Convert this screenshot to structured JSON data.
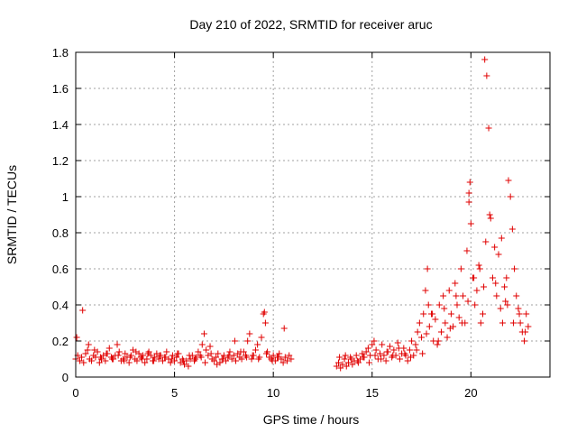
{
  "chart_data": {
    "type": "scatter",
    "title": "Day 210 of 2022, SRMTID for receiver aruc",
    "xlabel": "GPS time / hours",
    "ylabel": "SRMTID / TECUs",
    "xlim": [
      0,
      24
    ],
    "ylim": [
      0,
      1.8
    ],
    "xticks": [
      0,
      5,
      10,
      15,
      20
    ],
    "xtick_labels": [
      "0",
      "5",
      "10",
      "15",
      "20"
    ],
    "yticks": [
      0,
      0.2,
      0.4,
      0.6,
      0.8,
      1.0,
      1.2,
      1.4,
      1.6,
      1.8
    ],
    "ytick_labels": [
      "0",
      "0.2",
      "0.4",
      "0.6",
      "0.8",
      "1",
      "1.2",
      "1.4",
      "1.6",
      "1.8"
    ],
    "grid": true,
    "marker": "+",
    "series": [
      {
        "name": "SRMTID",
        "color": "#e00000",
        "x": [
          0.0,
          0.1,
          0.2,
          0.3,
          0.4,
          0.5,
          0.6,
          0.7,
          0.8,
          0.9,
          1.0,
          1.1,
          1.2,
          1.3,
          1.4,
          1.5,
          1.6,
          1.7,
          1.8,
          1.9,
          2.0,
          2.1,
          2.2,
          2.3,
          2.4,
          2.5,
          2.6,
          2.7,
          2.8,
          2.9,
          3.0,
          3.1,
          3.2,
          3.3,
          3.4,
          3.5,
          3.6,
          3.7,
          3.8,
          3.9,
          4.0,
          4.1,
          4.2,
          4.3,
          4.4,
          4.5,
          4.6,
          4.7,
          4.8,
          4.9,
          5.0,
          5.1,
          5.2,
          5.3,
          5.4,
          5.5,
          5.6,
          5.7,
          5.8,
          5.9,
          6.0,
          6.1,
          6.2,
          6.3,
          6.4,
          6.5,
          6.6,
          6.7,
          6.8,
          6.9,
          7.0,
          7.1,
          7.2,
          7.3,
          7.4,
          7.5,
          7.6,
          7.7,
          7.8,
          7.9,
          8.0,
          8.1,
          8.2,
          8.3,
          8.4,
          8.5,
          8.6,
          8.7,
          8.8,
          8.9,
          9.0,
          9.1,
          9.2,
          9.3,
          9.4,
          9.5,
          9.55,
          9.6,
          9.7,
          9.8,
          9.9,
          10.0,
          10.1,
          10.2,
          10.3,
          10.4,
          10.5,
          10.6,
          10.7,
          10.8,
          10.9,
          13.2,
          13.3,
          13.4,
          13.5,
          13.6,
          13.7,
          13.8,
          13.9,
          14.0,
          14.1,
          14.2,
          14.3,
          14.4,
          14.5,
          14.6,
          14.7,
          14.8,
          14.9,
          15.0,
          15.1,
          15.2,
          15.3,
          15.4,
          15.5,
          15.6,
          15.7,
          15.8,
          15.9,
          16.0,
          16.1,
          16.2,
          16.3,
          16.4,
          16.5,
          16.6,
          16.7,
          16.8,
          16.9,
          17.0,
          17.1,
          17.2,
          17.3,
          17.4,
          17.5,
          17.6,
          17.7,
          17.8,
          17.85,
          17.9,
          18.0,
          18.1,
          18.2,
          18.3,
          18.4,
          18.5,
          18.6,
          18.7,
          18.8,
          18.9,
          19.0,
          19.1,
          19.2,
          19.3,
          19.4,
          19.5,
          19.6,
          19.7,
          19.8,
          19.9,
          19.95,
          20.0,
          20.1,
          20.2,
          20.3,
          20.4,
          20.5,
          20.6,
          20.65,
          20.7,
          20.8,
          20.9,
          21.0,
          21.1,
          21.2,
          21.3,
          21.4,
          21.5,
          21.6,
          21.7,
          21.75,
          21.8,
          21.9,
          22.0,
          22.1,
          22.2,
          22.3,
          22.4,
          22.5,
          22.6,
          22.7,
          22.8,
          22.9,
          0.05,
          0.35,
          0.65,
          0.95,
          1.25,
          1.55,
          1.85,
          2.15,
          2.45,
          2.75,
          3.05,
          3.35,
          3.65,
          3.95,
          4.25,
          4.55,
          4.85,
          5.15,
          5.45,
          5.75,
          6.05,
          6.35,
          6.55,
          6.85,
          7.15,
          7.45,
          7.75,
          8.05,
          8.35,
          8.65,
          8.95,
          9.25,
          9.65,
          9.95,
          10.25,
          10.55,
          13.35,
          13.65,
          13.95,
          14.25,
          14.55,
          14.85,
          15.15,
          15.45,
          15.75,
          16.05,
          16.35,
          16.65,
          16.95,
          17.25,
          17.55,
          17.75,
          18.05,
          18.35,
          18.65,
          18.95,
          19.25,
          19.55,
          19.85,
          19.9,
          20.15,
          20.45,
          20.75,
          20.95,
          21.25,
          21.55,
          21.85,
          22.15,
          22.45,
          22.75
        ],
        "y": [
          0.1,
          0.12,
          0.09,
          0.11,
          0.08,
          0.13,
          0.15,
          0.1,
          0.09,
          0.12,
          0.11,
          0.14,
          0.08,
          0.1,
          0.12,
          0.09,
          0.13,
          0.16,
          0.11,
          0.1,
          0.12,
          0.18,
          0.14,
          0.09,
          0.1,
          0.13,
          0.11,
          0.08,
          0.12,
          0.15,
          0.1,
          0.09,
          0.13,
          0.11,
          0.12,
          0.08,
          0.1,
          0.14,
          0.12,
          0.09,
          0.11,
          0.13,
          0.1,
          0.12,
          0.09,
          0.11,
          0.14,
          0.1,
          0.08,
          0.12,
          0.09,
          0.11,
          0.13,
          0.08,
          0.1,
          0.07,
          0.09,
          0.06,
          0.1,
          0.12,
          0.09,
          0.11,
          0.14,
          0.12,
          0.18,
          0.24,
          0.15,
          0.12,
          0.17,
          0.1,
          0.09,
          0.11,
          0.13,
          0.08,
          0.1,
          0.12,
          0.09,
          0.11,
          0.14,
          0.1,
          0.12,
          0.09,
          0.13,
          0.11,
          0.1,
          0.14,
          0.12,
          0.2,
          0.24,
          0.1,
          0.12,
          0.15,
          0.18,
          0.11,
          0.22,
          0.35,
          0.36,
          0.3,
          0.14,
          0.11,
          0.1,
          0.12,
          0.09,
          0.11,
          0.13,
          0.1,
          0.08,
          0.11,
          0.09,
          0.12,
          0.1,
          0.06,
          0.08,
          0.05,
          0.07,
          0.1,
          0.06,
          0.08,
          0.11,
          0.07,
          0.09,
          0.12,
          0.08,
          0.1,
          0.13,
          0.11,
          0.14,
          0.16,
          0.12,
          0.18,
          0.2,
          0.15,
          0.1,
          0.13,
          0.18,
          0.12,
          0.09,
          0.14,
          0.17,
          0.11,
          0.15,
          0.12,
          0.19,
          0.1,
          0.13,
          0.16,
          0.12,
          0.09,
          0.15,
          0.2,
          0.12,
          0.18,
          0.25,
          0.3,
          0.22,
          0.35,
          0.48,
          0.6,
          0.4,
          0.28,
          0.35,
          0.2,
          0.32,
          0.18,
          0.4,
          0.25,
          0.45,
          0.3,
          0.22,
          0.48,
          0.35,
          0.28,
          0.52,
          0.4,
          0.33,
          0.6,
          0.45,
          0.3,
          0.7,
          1.02,
          1.08,
          0.85,
          0.55,
          0.4,
          0.48,
          0.62,
          0.3,
          0.35,
          0.5,
          1.76,
          1.67,
          1.38,
          0.88,
          0.55,
          0.72,
          0.45,
          0.68,
          0.38,
          0.3,
          0.5,
          0.42,
          0.55,
          1.09,
          1.0,
          0.82,
          0.6,
          0.45,
          0.38,
          0.3,
          0.25,
          0.2,
          0.35,
          0.28,
          0.22,
          0.37,
          0.18,
          0.15,
          0.11,
          0.13,
          0.1,
          0.12,
          0.09,
          0.11,
          0.14,
          0.1,
          0.13,
          0.09,
          0.12,
          0.11,
          0.1,
          0.13,
          0.09,
          0.12,
          0.1,
          0.11,
          0.08,
          0.13,
          0.07,
          0.1,
          0.12,
          0.2,
          0.14,
          0.11,
          0.12,
          0.1,
          0.13,
          0.09,
          0.11,
          0.27,
          0.11,
          0.12,
          0.1,
          0.09,
          0.11,
          0.08,
          0.12,
          0.1,
          0.14,
          0.12,
          0.16,
          0.13,
          0.11,
          0.15,
          0.13,
          0.24,
          0.35,
          0.2,
          0.38,
          0.27,
          0.45,
          0.3,
          0.42,
          0.97,
          0.55,
          0.6,
          0.75,
          0.9,
          0.52,
          0.77,
          0.4,
          0.3,
          0.35,
          0.25
        ]
      }
    ]
  }
}
